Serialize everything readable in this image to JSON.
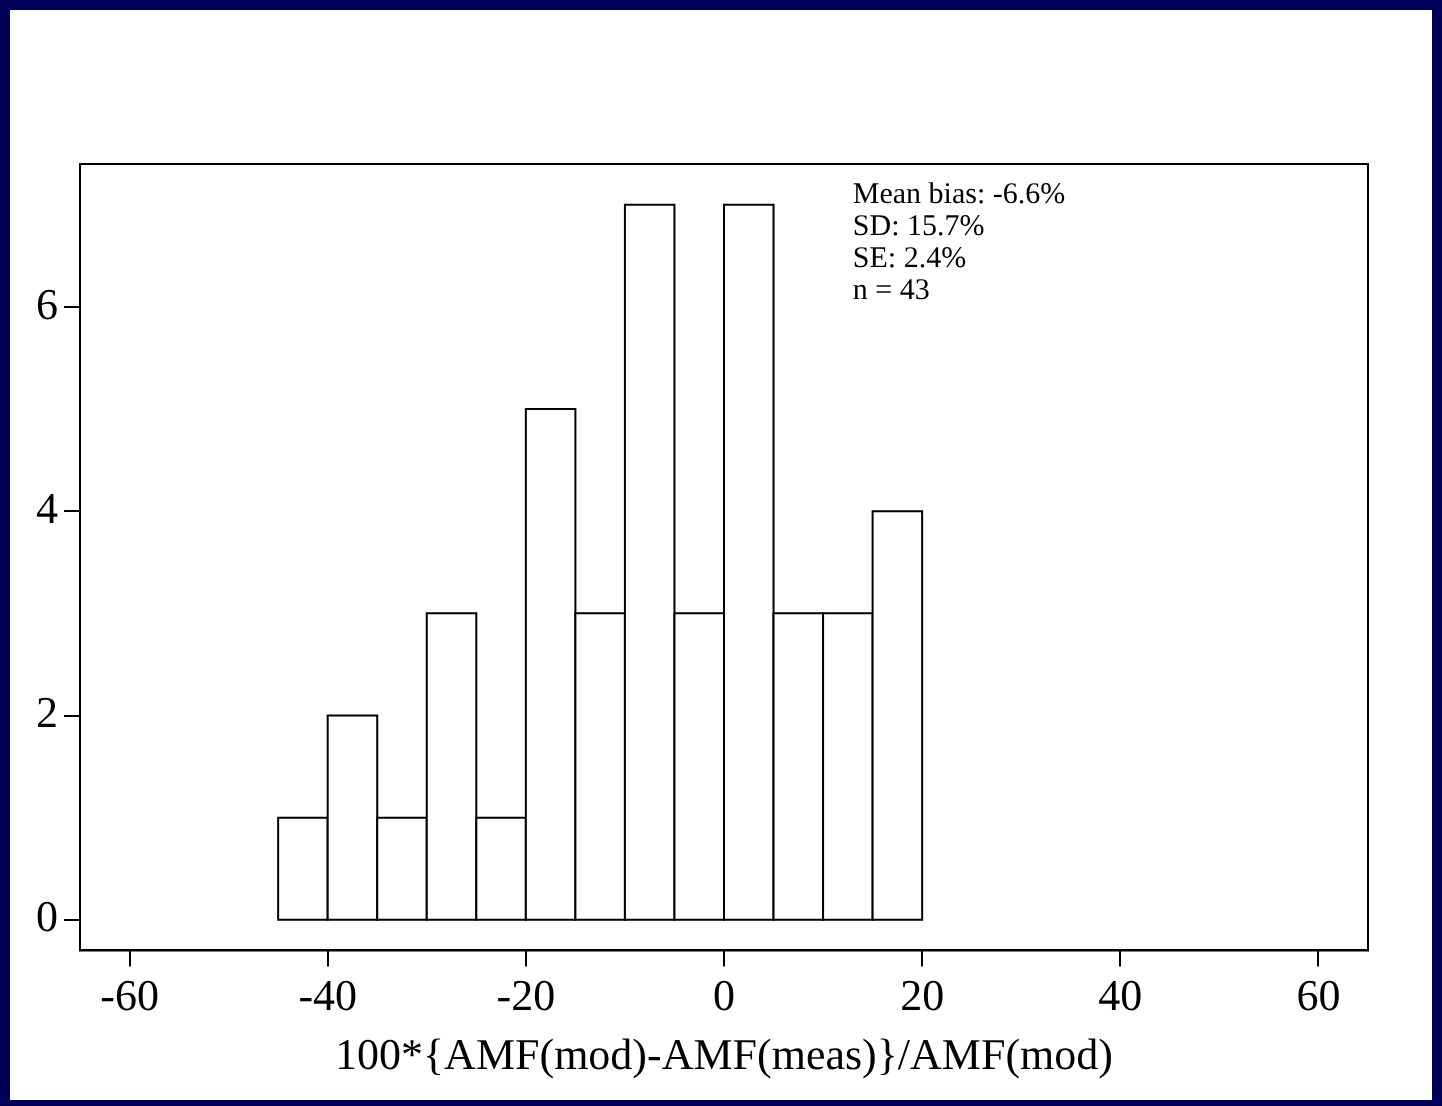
{
  "chart_data": {
    "type": "histogram",
    "xlabel": "100*{AMF(mod)-AMF(meas)}/AMF(mod)",
    "bins": [
      -45,
      -40,
      -35,
      -30,
      -25,
      -20,
      -15,
      -10,
      -5,
      0,
      5,
      10,
      15,
      20
    ],
    "values": [
      1,
      2,
      1,
      3,
      1,
      5,
      3,
      7,
      3,
      7,
      3,
      3,
      4
    ],
    "color": "#ffffff",
    "xlim": [
      -65,
      65
    ],
    "xticks": [
      -60,
      -40,
      -20,
      0,
      20,
      40,
      60
    ],
    "ylim": [
      -0.3,
      7.4
    ],
    "yticks": [
      0,
      2,
      4,
      6
    ],
    "grid": false,
    "legend": false,
    "annotations": [
      "Mean bias: -6.6%",
      "SD: 15.7%",
      "SE: 2.4%",
      "n = 43"
    ]
  }
}
